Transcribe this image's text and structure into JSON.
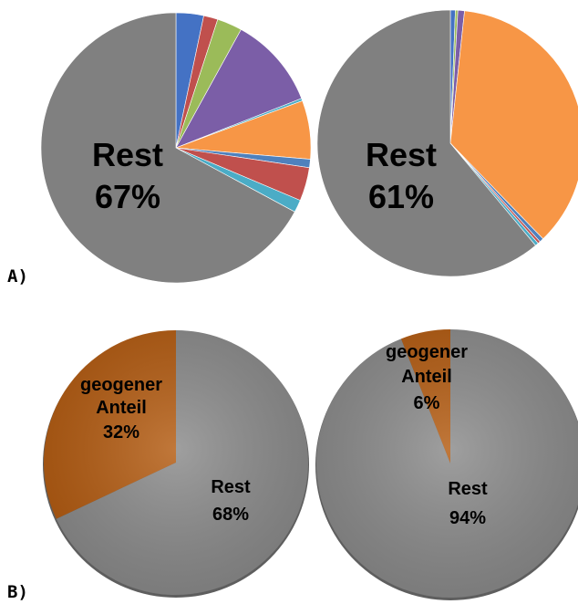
{
  "panels": {
    "a_label": "A)",
    "b_label": "B)"
  },
  "chart_data": [
    {
      "type": "pie",
      "panel": "A)",
      "title": "",
      "start": "12 o'clock, clockwise",
      "slices": [
        {
          "value": 3.3,
          "color": "#4472c4"
        },
        {
          "value": 1.7,
          "color": "#c0504d"
        },
        {
          "value": 3.0,
          "color": "#9bbb59"
        },
        {
          "value": 11.0,
          "color": "#7b5ea7"
        },
        {
          "value": 0.3,
          "color": "#4bacc6"
        },
        {
          "value": 7.0,
          "color": "#f79646"
        },
        {
          "value": 1.0,
          "color": "#4f81bd"
        },
        {
          "value": 4.0,
          "color": "#c0504d"
        },
        {
          "value": 1.5,
          "color": "#4bacc6"
        },
        {
          "value": 67,
          "color": "#808080",
          "label": "Rest",
          "pct": "67%"
        }
      ]
    },
    {
      "type": "pie",
      "panel": "A)",
      "title": "",
      "start": "12 o'clock, clockwise",
      "slices": [
        {
          "value": 0.6,
          "color": "#4472c4"
        },
        {
          "value": 0.3,
          "color": "#9bbb59"
        },
        {
          "value": 0.8,
          "color": "#7b5ea7"
        },
        {
          "value": 36.0,
          "color": "#f79646"
        },
        {
          "value": 0.5,
          "color": "#4f81bd"
        },
        {
          "value": 0.3,
          "color": "#c0504d"
        },
        {
          "value": 0.4,
          "color": "#4bacc6"
        },
        {
          "value": 61,
          "color": "#808080",
          "label": "Rest",
          "pct": "61%"
        }
      ]
    },
    {
      "type": "pie",
      "panel": "B)",
      "title": "",
      "start": "12 o'clock, counter-clockwise",
      "slices": [
        {
          "value": 32,
          "color": "#b35a0f",
          "label": "geogener Anteil",
          "pct": "32%"
        },
        {
          "value": 68,
          "color": "#8a8a8a",
          "label": "Rest",
          "pct": "68%"
        }
      ]
    },
    {
      "type": "pie",
      "panel": "B)",
      "title": "",
      "start": "12 o'clock, counter-clockwise",
      "slices": [
        {
          "value": 6,
          "color": "#b35a0f",
          "label": "geogener Anteil",
          "pct": "6%"
        },
        {
          "value": 94,
          "color": "#8a8a8a",
          "label": "Rest",
          "pct": "94%"
        }
      ]
    }
  ]
}
